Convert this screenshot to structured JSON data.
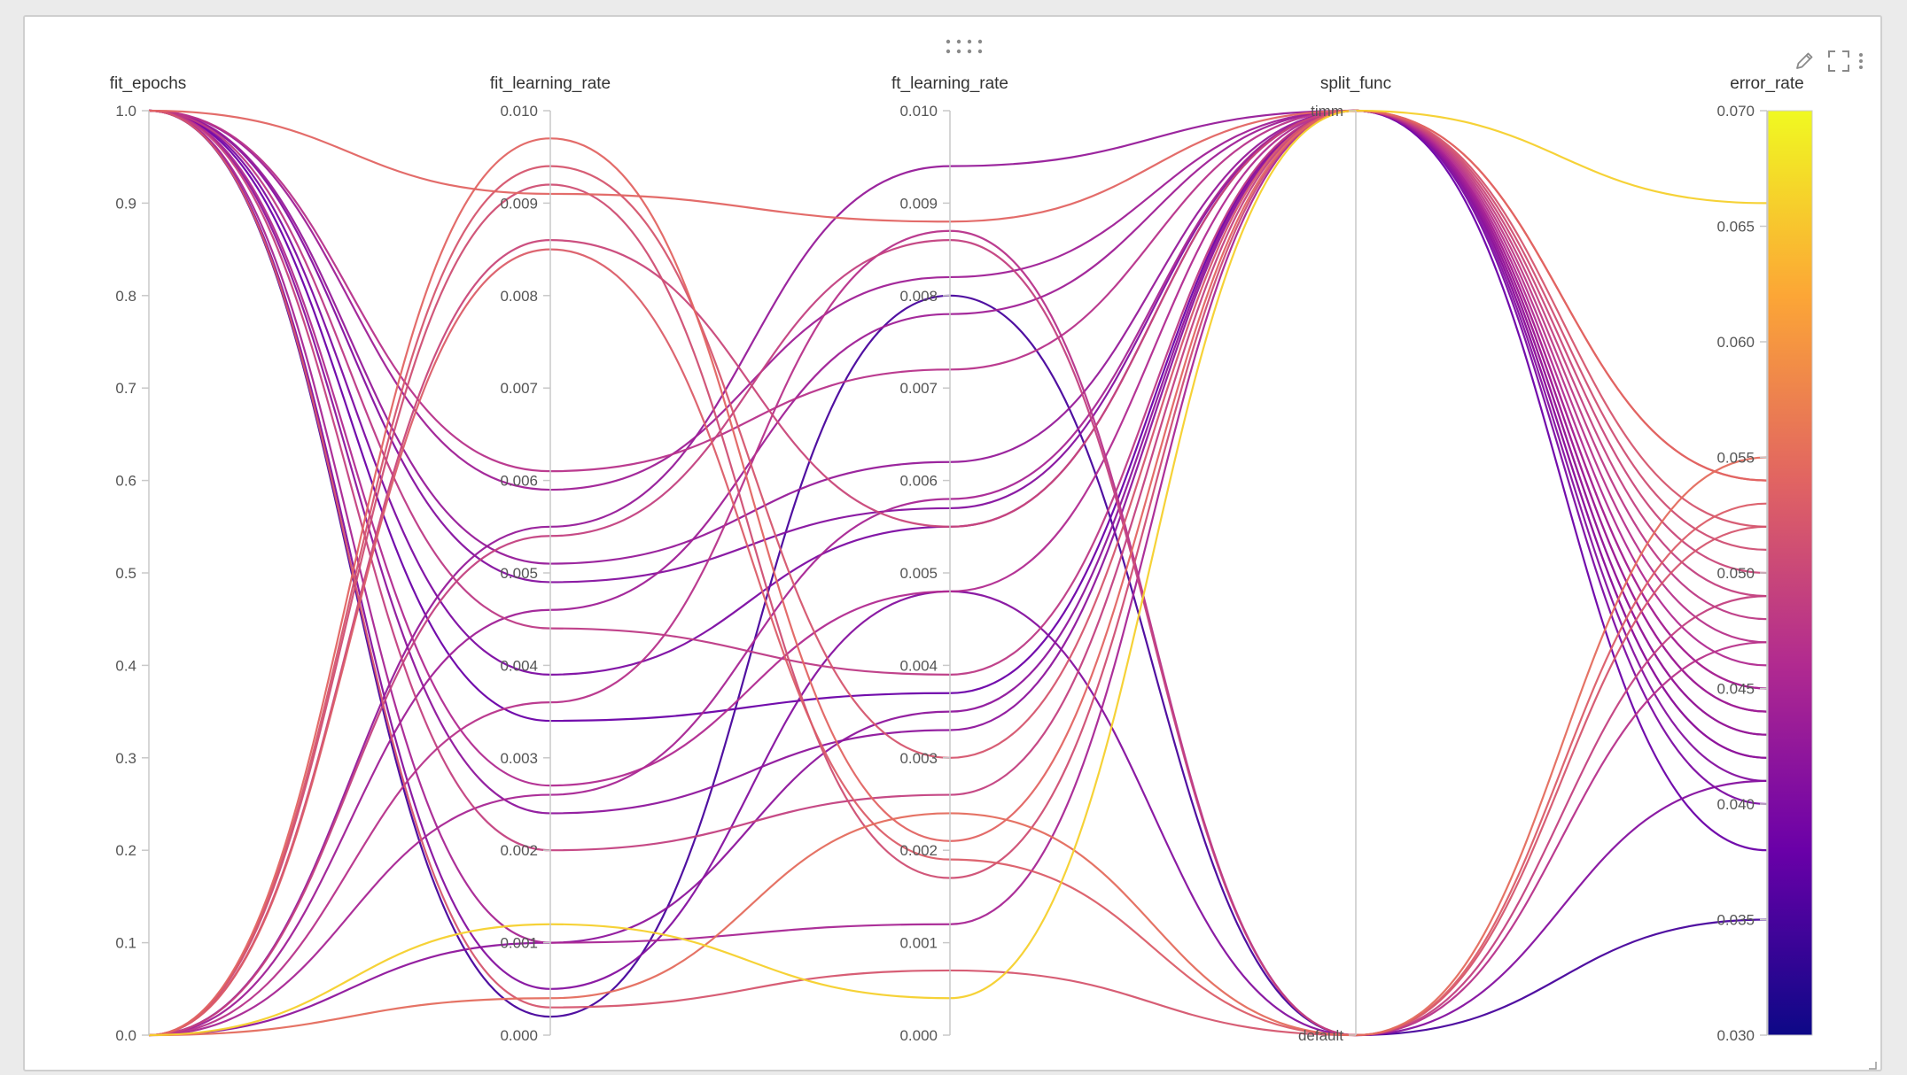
{
  "toolbar": {
    "drag_icon": "drag-handle-icon",
    "edit_icon": "pencil-icon",
    "fullscreen_icon": "fullscreen-icon",
    "menu_icon": "kebab-menu-icon"
  },
  "chart_data": {
    "type": "parallel_coordinates",
    "color_by": "error_rate",
    "colorscale": [
      "#0d0887",
      "#6a00a8",
      "#b12a90",
      "#e16462",
      "#fca636",
      "#f0f921"
    ],
    "axes": [
      {
        "name": "fit_epochs",
        "range": [
          0.0,
          1.0
        ],
        "ticks": [
          "0.0",
          "0.1",
          "0.2",
          "0.3",
          "0.4",
          "0.5",
          "0.6",
          "0.7",
          "0.8",
          "0.9",
          "1.0"
        ]
      },
      {
        "name": "fit_learning_rate",
        "range": [
          0.0,
          0.01
        ],
        "ticks": [
          "0.000",
          "0.001",
          "0.002",
          "0.003",
          "0.004",
          "0.005",
          "0.006",
          "0.007",
          "0.008",
          "0.009",
          "0.010"
        ]
      },
      {
        "name": "ft_learning_rate",
        "range": [
          0.0,
          0.01
        ],
        "ticks": [
          "0.000",
          "0.001",
          "0.002",
          "0.003",
          "0.004",
          "0.005",
          "0.006",
          "0.007",
          "0.008",
          "0.009",
          "0.010"
        ]
      },
      {
        "name": "split_func",
        "categories": [
          "default",
          "timm"
        ]
      },
      {
        "name": "error_rate",
        "range": [
          0.03,
          0.07
        ],
        "ticks": [
          "0.030",
          "0.035",
          "0.040",
          "0.045",
          "0.050",
          "0.055",
          "0.060",
          "0.065",
          "0.070"
        ]
      }
    ],
    "runs": [
      {
        "fit_epochs": 1,
        "fit_learning_rate": 0.0091,
        "ft_learning_rate": 0.0088,
        "split_func": "timm",
        "error_rate": 0.054
      },
      {
        "fit_epochs": 1,
        "fit_learning_rate": 0.0061,
        "ft_learning_rate": 0.0072,
        "split_func": "timm",
        "error_rate": 0.047
      },
      {
        "fit_epochs": 1,
        "fit_learning_rate": 0.0059,
        "ft_learning_rate": 0.0082,
        "split_func": "timm",
        "error_rate": 0.044
      },
      {
        "fit_epochs": 1,
        "fit_learning_rate": 0.0051,
        "ft_learning_rate": 0.0062,
        "split_func": "timm",
        "error_rate": 0.043
      },
      {
        "fit_epochs": 1,
        "fit_learning_rate": 0.0049,
        "ft_learning_rate": 0.0057,
        "split_func": "timm",
        "error_rate": 0.041
      },
      {
        "fit_epochs": 1,
        "fit_learning_rate": 0.0044,
        "ft_learning_rate": 0.0039,
        "split_func": "timm",
        "error_rate": 0.048
      },
      {
        "fit_epochs": 1,
        "fit_learning_rate": 0.0039,
        "ft_learning_rate": 0.0055,
        "split_func": "timm",
        "error_rate": 0.04
      },
      {
        "fit_epochs": 1,
        "fit_learning_rate": 0.0034,
        "ft_learning_rate": 0.0037,
        "split_func": "timm",
        "error_rate": 0.038
      },
      {
        "fit_epochs": 1,
        "fit_learning_rate": 0.0027,
        "ft_learning_rate": 0.0048,
        "split_func": "timm",
        "error_rate": 0.046
      },
      {
        "fit_epochs": 1,
        "fit_learning_rate": 0.0024,
        "ft_learning_rate": 0.0033,
        "split_func": "timm",
        "error_rate": 0.042
      },
      {
        "fit_epochs": 1,
        "fit_learning_rate": 0.002,
        "ft_learning_rate": 0.0026,
        "split_func": "timm",
        "error_rate": 0.049
      },
      {
        "fit_epochs": 1,
        "fit_learning_rate": 0.001,
        "ft_learning_rate": 0.0012,
        "split_func": "timm",
        "error_rate": 0.045
      },
      {
        "fit_epochs": 1,
        "fit_learning_rate": 0.0003,
        "ft_learning_rate": 0.0007,
        "split_func": "default",
        "error_rate": 0.052
      },
      {
        "fit_epochs": 1,
        "fit_learning_rate": 0.0002,
        "ft_learning_rate": 0.008,
        "split_func": "default",
        "error_rate": 0.035
      },
      {
        "fit_epochs": 1,
        "fit_learning_rate": 0.0005,
        "ft_learning_rate": 0.0048,
        "split_func": "default",
        "error_rate": 0.041
      },
      {
        "fit_epochs": 0,
        "fit_learning_rate": 0.0097,
        "ft_learning_rate": 0.0021,
        "split_func": "timm",
        "error_rate": 0.054
      },
      {
        "fit_epochs": 0,
        "fit_learning_rate": 0.0094,
        "ft_learning_rate": 0.003,
        "split_func": "timm",
        "error_rate": 0.052
      },
      {
        "fit_epochs": 0,
        "fit_learning_rate": 0.0092,
        "ft_learning_rate": 0.0017,
        "split_func": "timm",
        "error_rate": 0.051
      },
      {
        "fit_epochs": 0,
        "fit_learning_rate": 0.0086,
        "ft_learning_rate": 0.0055,
        "split_func": "timm",
        "error_rate": 0.05
      },
      {
        "fit_epochs": 0,
        "fit_learning_rate": 0.0085,
        "ft_learning_rate": 0.0019,
        "split_func": "default",
        "error_rate": 0.053
      },
      {
        "fit_epochs": 0,
        "fit_learning_rate": 0.0054,
        "ft_learning_rate": 0.0086,
        "split_func": "default",
        "error_rate": 0.049
      },
      {
        "fit_epochs": 0,
        "fit_learning_rate": 0.0055,
        "ft_learning_rate": 0.0094,
        "split_func": "timm",
        "error_rate": 0.043
      },
      {
        "fit_epochs": 0,
        "fit_learning_rate": 0.0046,
        "ft_learning_rate": 0.0078,
        "split_func": "timm",
        "error_rate": 0.044
      },
      {
        "fit_epochs": 0,
        "fit_learning_rate": 0.0036,
        "ft_learning_rate": 0.0087,
        "split_func": "default",
        "error_rate": 0.047
      },
      {
        "fit_epochs": 0,
        "fit_learning_rate": 0.0026,
        "ft_learning_rate": 0.0058,
        "split_func": "timm",
        "error_rate": 0.045
      },
      {
        "fit_epochs": 0,
        "fit_learning_rate": 0.0012,
        "ft_learning_rate": 0.0004,
        "split_func": "timm",
        "error_rate": 0.066
      },
      {
        "fit_epochs": 0,
        "fit_learning_rate": 0.001,
        "ft_learning_rate": 0.0035,
        "split_func": "timm",
        "error_rate": 0.042
      },
      {
        "fit_epochs": 0,
        "fit_learning_rate": 0.0004,
        "ft_learning_rate": 0.0024,
        "split_func": "default",
        "error_rate": 0.055
      }
    ]
  }
}
